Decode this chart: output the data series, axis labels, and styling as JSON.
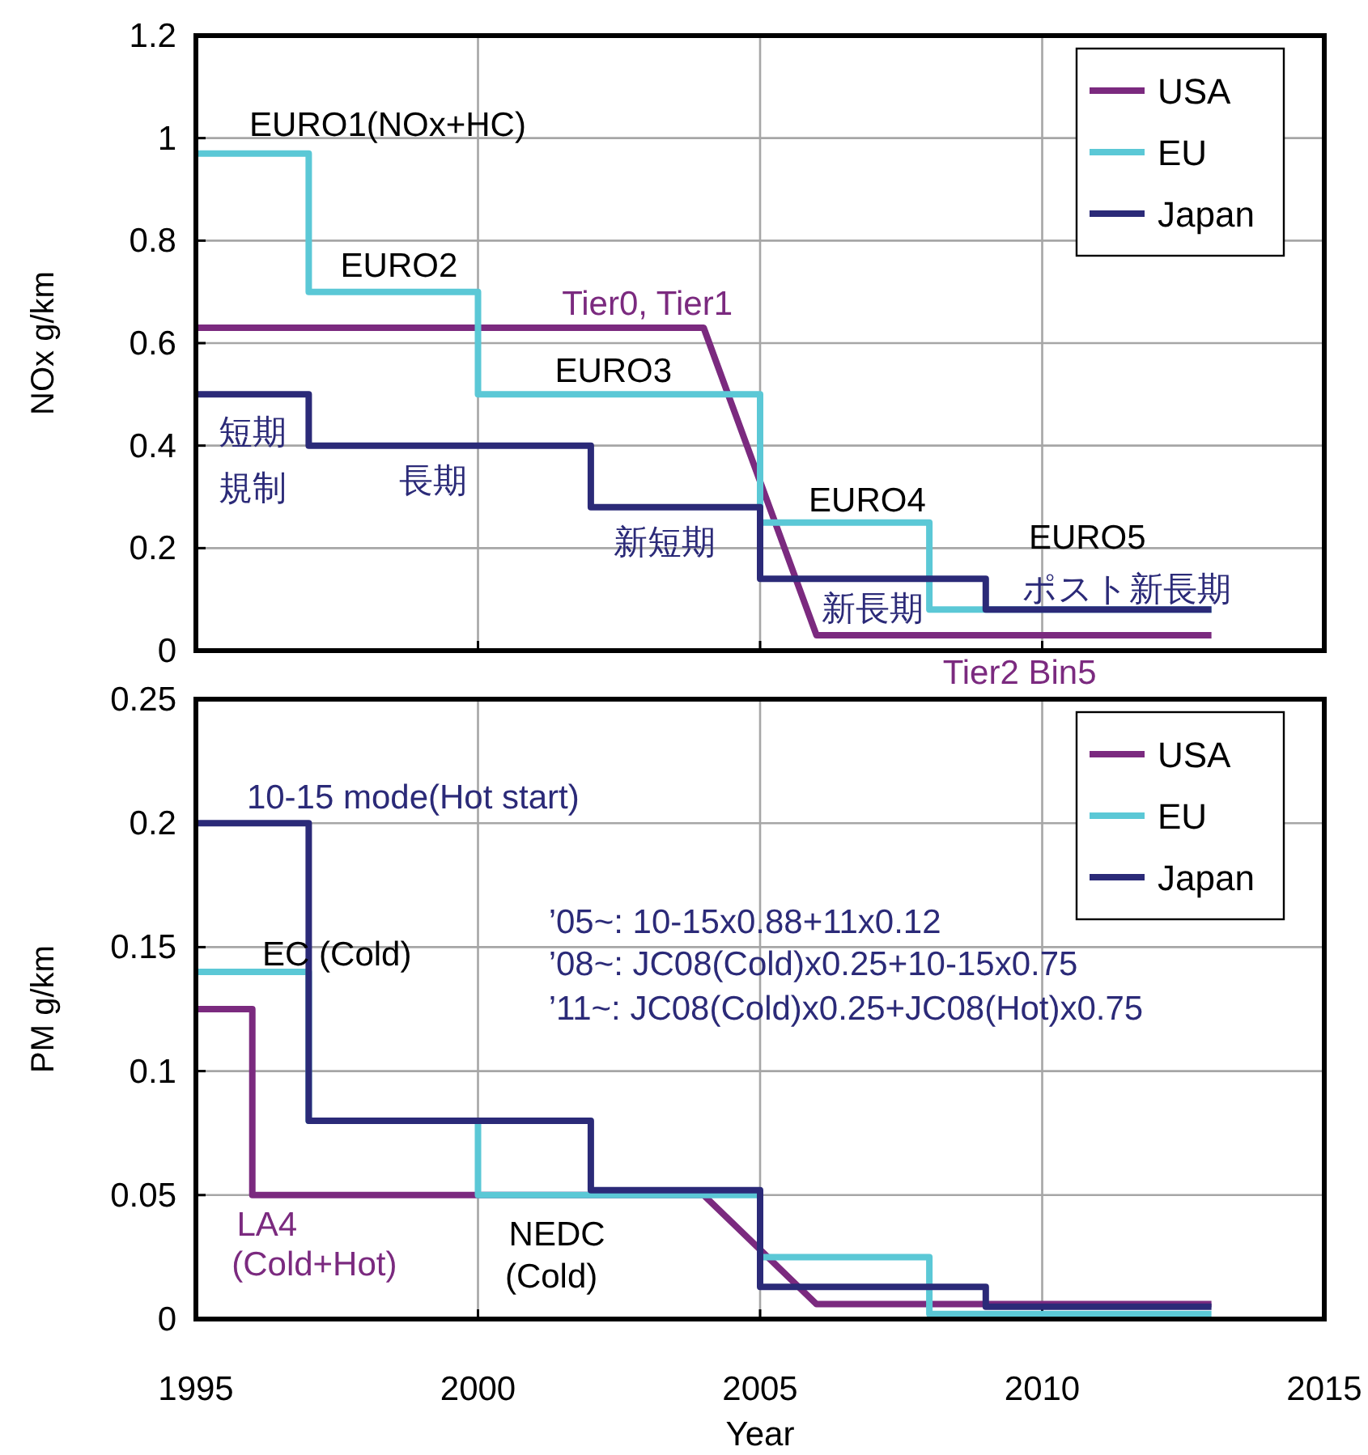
{
  "chart_data": [
    {
      "type": "line",
      "ylabel": "NOx  g/km",
      "xlim": [
        1995,
        2015
      ],
      "xticks": [
        1995,
        2000,
        2005,
        2010,
        2015
      ],
      "ylim": [
        0,
        1.2
      ],
      "yticks": [
        0,
        0.2,
        0.4,
        0.6,
        0.8,
        1,
        1.2
      ],
      "grid": true,
      "legend": "top right",
      "tick_labels": "y",
      "series": [
        {
          "name": "USA",
          "color": "#7b2a7f",
          "x": [
            1995,
            2004,
            2006,
            2013
          ],
          "values": [
            0.63,
            0.63,
            0.03,
            0.03
          ]
        },
        {
          "name": "EU",
          "color": "#5bc8d6",
          "x": [
            1995,
            1997,
            1997,
            2000,
            2000,
            2005,
            2005,
            2008,
            2008,
            2013
          ],
          "values": [
            0.97,
            0.97,
            0.7,
            0.7,
            0.5,
            0.5,
            0.25,
            0.25,
            0.08,
            0.08
          ]
        },
        {
          "name": "Japan",
          "color": "#2b2a78",
          "x": [
            1995,
            1997,
            1997,
            2002,
            2002,
            2005,
            2005,
            2009,
            2009,
            2013
          ],
          "values": [
            0.5,
            0.5,
            0.4,
            0.4,
            0.28,
            0.28,
            0.14,
            0.14,
            0.08,
            0.08
          ]
        }
      ],
      "annotations": [
        "EURO1(NOx+HC)",
        "EURO2",
        "Tier0, Tier1",
        "EURO3",
        "短期",
        "規制",
        "長期",
        "新短期",
        "EURO4",
        "新長期",
        "EURO5",
        "ポスト新長期",
        "Tier2 Bin5"
      ]
    },
    {
      "type": "line",
      "xlabel": "Year",
      "ylabel": "PM  g/km",
      "xlim": [
        1995,
        2015
      ],
      "xticks": [
        1995,
        2000,
        2005,
        2010,
        2015
      ],
      "ylim": [
        0,
        0.25
      ],
      "yticks": [
        0,
        0.05,
        0.1,
        0.15,
        0.2,
        0.25
      ],
      "grid": true,
      "legend": "top right",
      "series": [
        {
          "name": "USA",
          "color": "#7b2a7f",
          "x": [
            1995,
            1996,
            1996,
            2004,
            2006,
            2013
          ],
          "values": [
            0.125,
            0.125,
            0.05,
            0.05,
            0.006,
            0.006
          ]
        },
        {
          "name": "EU",
          "color": "#5bc8d6",
          "x": [
            1995,
            1997,
            1997,
            2000,
            2000,
            2005,
            2005,
            2008,
            2008,
            2013
          ],
          "values": [
            0.14,
            0.14,
            0.08,
            0.08,
            0.05,
            0.05,
            0.025,
            0.025,
            0.002,
            0.002
          ]
        },
        {
          "name": "Japan",
          "color": "#2b2a78",
          "x": [
            1995,
            1997,
            1997,
            2002,
            2002,
            2005,
            2005,
            2009,
            2009,
            2013
          ],
          "values": [
            0.2,
            0.2,
            0.08,
            0.08,
            0.052,
            0.052,
            0.013,
            0.013,
            0.005,
            0.005
          ]
        }
      ],
      "annotations": [
        "10-15 mode(Hot start)",
        "EC (Cold)",
        "LA4",
        "(Cold+Hot)",
        "NEDC",
        "(Cold)",
        "’05~: 10-15x0.88+11x0.12",
        "’08~: JC08(Cold)x0.25+10-15x0.75",
        "’11~: JC08(Cold)x0.25+JC08(Hot)x0.75"
      ]
    }
  ]
}
